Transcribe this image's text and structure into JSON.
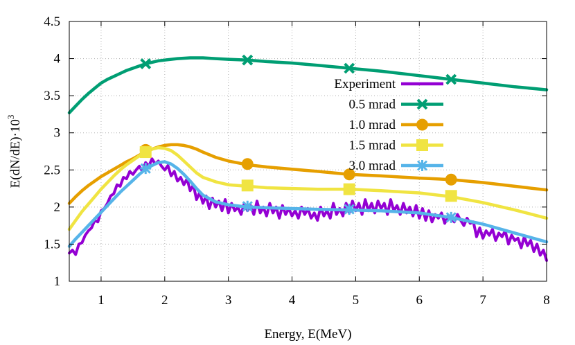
{
  "chart_data": {
    "type": "line",
    "xlabel": "Energy, E(MeV)",
    "ylabel": "E(dN/dE)·10",
    "ylabel_exponent": "3",
    "xlim": [
      0.5,
      8
    ],
    "ylim": [
      1,
      4.5
    ],
    "xticks": [
      1,
      2,
      3,
      4,
      5,
      6,
      7,
      8
    ],
    "yticks": [
      1,
      1.5,
      2,
      2.5,
      3,
      3.5,
      4,
      4.5
    ],
    "grid": true,
    "legend_position": "top-right",
    "series": [
      {
        "name": "Experiment",
        "color": "#9400d3",
        "marker": "none",
        "x": [
          0.5,
          0.55,
          0.6,
          0.65,
          0.7,
          0.75,
          0.8,
          0.85,
          0.9,
          0.95,
          1.0,
          1.05,
          1.1,
          1.15,
          1.2,
          1.25,
          1.3,
          1.35,
          1.4,
          1.45,
          1.5,
          1.55,
          1.6,
          1.65,
          1.7,
          1.75,
          1.8,
          1.85,
          1.9,
          1.95,
          2.0,
          2.05,
          2.1,
          2.15,
          2.2,
          2.25,
          2.3,
          2.35,
          2.4,
          2.45,
          2.5,
          2.55,
          2.6,
          2.65,
          2.7,
          2.75,
          2.8,
          2.85,
          2.9,
          2.95,
          3.0,
          3.05,
          3.1,
          3.15,
          3.2,
          3.25,
          3.3,
          3.35,
          3.4,
          3.45,
          3.5,
          3.55,
          3.6,
          3.65,
          3.7,
          3.75,
          3.8,
          3.85,
          3.9,
          3.95,
          4.0,
          4.05,
          4.1,
          4.15,
          4.2,
          4.25,
          4.3,
          4.35,
          4.4,
          4.45,
          4.5,
          4.55,
          4.6,
          4.65,
          4.7,
          4.75,
          4.8,
          4.85,
          4.9,
          4.95,
          5.0,
          5.05,
          5.1,
          5.15,
          5.2,
          5.25,
          5.3,
          5.35,
          5.4,
          5.45,
          5.5,
          5.55,
          5.6,
          5.65,
          5.7,
          5.75,
          5.8,
          5.85,
          5.9,
          5.95,
          6.0,
          6.05,
          6.1,
          6.15,
          6.2,
          6.25,
          6.3,
          6.35,
          6.4,
          6.45,
          6.5,
          6.55,
          6.6,
          6.65,
          6.7,
          6.75,
          6.8,
          6.85,
          6.9,
          6.95,
          7.0,
          7.05,
          7.1,
          7.15,
          7.2,
          7.25,
          7.3,
          7.35,
          7.4,
          7.45,
          7.5,
          7.55,
          7.6,
          7.65,
          7.7,
          7.75,
          7.8,
          7.85,
          7.9,
          7.95,
          8.0
        ],
        "y": [
          1.38,
          1.42,
          1.36,
          1.5,
          1.52,
          1.62,
          1.68,
          1.72,
          1.82,
          1.8,
          1.95,
          1.98,
          2.05,
          2.15,
          2.18,
          2.3,
          2.28,
          2.4,
          2.38,
          2.48,
          2.44,
          2.5,
          2.55,
          2.48,
          2.6,
          2.55,
          2.65,
          2.58,
          2.62,
          2.55,
          2.5,
          2.56,
          2.42,
          2.48,
          2.35,
          2.4,
          2.3,
          2.38,
          2.22,
          2.3,
          2.1,
          2.2,
          2.05,
          2.15,
          1.98,
          2.12,
          2.0,
          2.08,
          1.95,
          2.1,
          1.92,
          2.05,
          1.95,
          2.0,
          1.9,
          2.05,
          1.95,
          2.02,
          1.9,
          2.08,
          1.92,
          2.0,
          1.88,
          2.05,
          1.92,
          2.0,
          1.85,
          2.02,
          1.9,
          1.98,
          1.88,
          1.95,
          1.85,
          2.0,
          1.9,
          1.98,
          1.85,
          1.92,
          1.82,
          2.0,
          1.88,
          1.95,
          1.85,
          2.05,
          1.9,
          1.98,
          1.88,
          2.05,
          1.92,
          2.08,
          1.95,
          2.05,
          1.9,
          2.1,
          1.95,
          2.05,
          1.92,
          2.08,
          1.98,
          2.05,
          1.9,
          2.1,
          1.95,
          2.02,
          1.9,
          2.05,
          1.92,
          2.0,
          1.88,
          2.02,
          1.85,
          1.98,
          1.82,
          1.95,
          1.8,
          1.9,
          1.85,
          1.92,
          1.78,
          1.88,
          1.85,
          1.8,
          1.9,
          1.82,
          1.75,
          1.85,
          1.78,
          1.8,
          1.6,
          1.72,
          1.58,
          1.68,
          1.62,
          1.7,
          1.55,
          1.65,
          1.6,
          1.68,
          1.5,
          1.62,
          1.55,
          1.58,
          1.45,
          1.6,
          1.48,
          1.55,
          1.4,
          1.5,
          1.35,
          1.42,
          1.28
        ]
      },
      {
        "name": "0.5 mrad",
        "color": "#009e73",
        "marker": "cross",
        "x": [
          0.5,
          0.6,
          0.7,
          0.8,
          0.9,
          1.0,
          1.1,
          1.2,
          1.3,
          1.4,
          1.5,
          1.6,
          1.7,
          1.8,
          1.9,
          2.0,
          2.2,
          2.4,
          2.6,
          2.8,
          3.0,
          3.3,
          3.6,
          4.0,
          4.4,
          4.9,
          5.4,
          6.0,
          6.5,
          7.0,
          7.5,
          8.0
        ],
        "y": [
          3.27,
          3.36,
          3.45,
          3.53,
          3.6,
          3.67,
          3.72,
          3.76,
          3.8,
          3.84,
          3.87,
          3.9,
          3.93,
          3.95,
          3.97,
          3.98,
          4.0,
          4.01,
          4.01,
          4.0,
          3.99,
          3.98,
          3.96,
          3.94,
          3.91,
          3.87,
          3.83,
          3.77,
          3.72,
          3.67,
          3.62,
          3.58
        ],
        "marker_points": [
          [
            1.7,
            3.93
          ],
          [
            3.3,
            3.98
          ],
          [
            4.9,
            3.87
          ],
          [
            6.5,
            3.72
          ]
        ]
      },
      {
        "name": "1.0 mrad",
        "color": "#e69f00",
        "marker": "circle",
        "x": [
          0.5,
          0.6,
          0.7,
          0.8,
          0.9,
          1.0,
          1.1,
          1.2,
          1.3,
          1.4,
          1.5,
          1.6,
          1.7,
          1.8,
          1.9,
          2.0,
          2.1,
          2.2,
          2.3,
          2.4,
          2.5,
          2.6,
          2.8,
          3.0,
          3.3,
          3.6,
          4.0,
          4.4,
          4.9,
          5.4,
          6.0,
          6.5,
          7.0,
          7.5,
          8.0
        ],
        "y": [
          2.05,
          2.14,
          2.22,
          2.29,
          2.35,
          2.41,
          2.46,
          2.51,
          2.56,
          2.61,
          2.65,
          2.7,
          2.74,
          2.78,
          2.81,
          2.83,
          2.84,
          2.84,
          2.83,
          2.81,
          2.78,
          2.74,
          2.67,
          2.62,
          2.57,
          2.54,
          2.51,
          2.48,
          2.44,
          2.42,
          2.39,
          2.37,
          2.33,
          2.28,
          2.23
        ],
        "marker_points": [
          [
            1.7,
            2.77
          ],
          [
            3.3,
            2.58
          ],
          [
            4.9,
            2.44
          ],
          [
            6.5,
            2.37
          ]
        ]
      },
      {
        "name": "1.5 mrad",
        "color": "#f0e442",
        "marker": "square",
        "x": [
          0.5,
          0.6,
          0.7,
          0.8,
          0.9,
          1.0,
          1.1,
          1.2,
          1.3,
          1.4,
          1.5,
          1.6,
          1.7,
          1.8,
          1.9,
          2.0,
          2.1,
          2.2,
          2.3,
          2.4,
          2.5,
          2.6,
          2.8,
          3.0,
          3.3,
          3.6,
          4.0,
          4.4,
          4.9,
          5.4,
          6.0,
          6.5,
          7.0,
          7.5,
          8.0
        ],
        "y": [
          1.7,
          1.82,
          1.94,
          2.04,
          2.14,
          2.24,
          2.33,
          2.42,
          2.5,
          2.57,
          2.63,
          2.69,
          2.74,
          2.78,
          2.8,
          2.79,
          2.76,
          2.7,
          2.62,
          2.54,
          2.46,
          2.4,
          2.34,
          2.3,
          2.28,
          2.26,
          2.25,
          2.24,
          2.24,
          2.22,
          2.19,
          2.14,
          2.06,
          1.96,
          1.85
        ],
        "marker_points": [
          [
            1.7,
            2.74
          ],
          [
            3.3,
            2.29
          ],
          [
            4.9,
            2.24
          ],
          [
            6.5,
            2.15
          ]
        ]
      },
      {
        "name": "3.0 mrad",
        "color": "#56b4e9",
        "marker": "star",
        "x": [
          0.5,
          0.6,
          0.7,
          0.8,
          0.9,
          1.0,
          1.1,
          1.2,
          1.3,
          1.4,
          1.5,
          1.6,
          1.7,
          1.8,
          1.9,
          2.0,
          2.1,
          2.2,
          2.3,
          2.4,
          2.5,
          2.6,
          2.8,
          3.0,
          3.3,
          3.6,
          4.0,
          4.4,
          4.9,
          5.4,
          6.0,
          6.5,
          7.0,
          7.5,
          8.0
        ],
        "y": [
          1.47,
          1.57,
          1.66,
          1.75,
          1.84,
          1.93,
          2.02,
          2.11,
          2.2,
          2.28,
          2.36,
          2.44,
          2.51,
          2.56,
          2.6,
          2.61,
          2.58,
          2.52,
          2.44,
          2.35,
          2.25,
          2.16,
          2.07,
          2.03,
          2.0,
          1.99,
          1.98,
          1.97,
          1.96,
          1.95,
          1.92,
          1.86,
          1.77,
          1.65,
          1.53
        ],
        "marker_points": [
          [
            1.7,
            2.52
          ],
          [
            3.3,
            2.01
          ],
          [
            4.9,
            1.97
          ],
          [
            6.5,
            1.86
          ]
        ]
      }
    ]
  }
}
